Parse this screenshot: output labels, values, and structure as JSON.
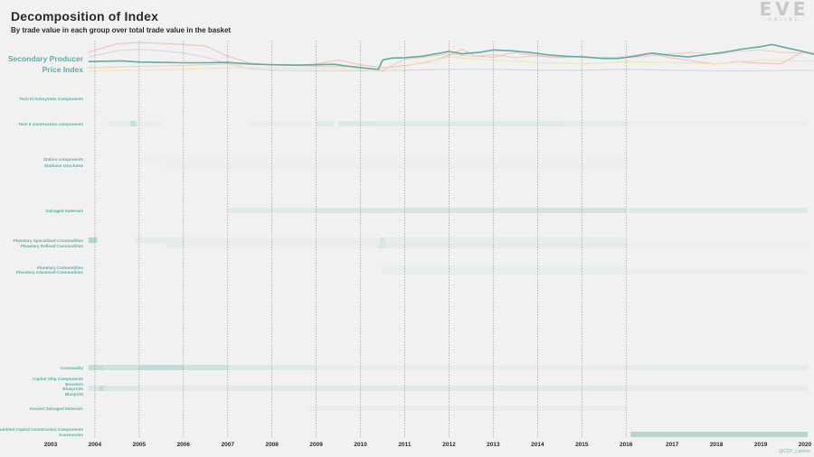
{
  "header": {
    "title": "Decomposition of Index",
    "subtitle": "By trade value in each group over total trade value in the basket",
    "logo_main": "EVE",
    "logo_sub": "ONLINE"
  },
  "credit": "@CCP_Larrikin",
  "chart_data": {
    "type": "heatmap",
    "title": "Decomposition of Index",
    "subtitle": "By trade value in each group over total trade value in the basket",
    "index_label_line1": "Secondary Producer",
    "index_label_line2": "Price Index",
    "x_ticks": [
      "2003",
      "2004",
      "2005",
      "2006",
      "2007",
      "2008",
      "2009",
      "2010",
      "2011",
      "2012",
      "2013",
      "2014",
      "2015",
      "2016",
      "2017",
      "2018",
      "2019",
      "2020"
    ],
    "xlim": [
      2003,
      2020.75
    ],
    "grid": "vertical dotted lines at each year",
    "colors": {
      "index_line": "#5fada4",
      "heat": "#7fbfb6",
      "bg_line_pink": "#f0b8b8",
      "bg_line_salmon": "#f3c6b4",
      "bg_line_lavender": "#cfd0e4",
      "bg_line_yellow": "#efe3ad",
      "label_color": "#5fada4"
    },
    "index_series": {
      "name": "Secondary Producer Price Index",
      "x": [
        2003.85,
        2004.2,
        2004.6,
        2005.0,
        2005.5,
        2006.0,
        2006.5,
        2007.0,
        2007.5,
        2008.0,
        2008.5,
        2009.0,
        2009.4,
        2009.8,
        2010.2,
        2010.4,
        2010.5,
        2010.7,
        2011.0,
        2011.4,
        2011.8,
        2012.0,
        2012.3,
        2012.7,
        2013.0,
        2013.4,
        2013.8,
        2014.2,
        2014.6,
        2015.0,
        2015.4,
        2015.8,
        2016.2,
        2016.6,
        2017.0,
        2017.4,
        2017.8,
        2018.2,
        2018.6,
        2019.0,
        2019.3,
        2019.6,
        2020.0,
        2020.4,
        2020.75
      ],
      "values": [
        0.46,
        0.47,
        0.48,
        0.45,
        0.44,
        0.43,
        0.43,
        0.44,
        0.4,
        0.38,
        0.37,
        0.38,
        0.39,
        0.33,
        0.28,
        0.26,
        0.5,
        0.55,
        0.56,
        0.6,
        0.68,
        0.72,
        0.66,
        0.7,
        0.76,
        0.74,
        0.7,
        0.64,
        0.6,
        0.58,
        0.55,
        0.54,
        0.6,
        0.68,
        0.62,
        0.58,
        0.64,
        0.7,
        0.78,
        0.84,
        0.9,
        0.82,
        0.72,
        0.6,
        0.55
      ]
    },
    "background_series": [
      {
        "color": "pink",
        "x": [
          2003.85,
          2004.5,
          2005.0,
          2005.5,
          2006.0,
          2006.5,
          2007.0,
          2007.5,
          2008.0,
          2008.5,
          2009.0,
          2009.5,
          2010.0,
          2010.5,
          2011.0,
          2011.5,
          2012.0,
          2012.3,
          2012.6,
          2013.0,
          2013.5,
          2014.0,
          2014.5,
          2015.0,
          2015.5,
          2016.0,
          2016.5,
          2017.0,
          2017.5,
          2018.0,
          2018.5,
          2019.0,
          2019.5,
          2020.0,
          2020.75
        ],
        "values": [
          0.7,
          0.92,
          0.95,
          0.93,
          0.9,
          0.86,
          0.6,
          0.42,
          0.38,
          0.36,
          0.4,
          0.5,
          0.38,
          0.3,
          0.36,
          0.44,
          0.62,
          0.78,
          0.6,
          0.58,
          0.7,
          0.6,
          0.56,
          0.6,
          0.54,
          0.58,
          0.68,
          0.56,
          0.48,
          0.4,
          0.46,
          0.42,
          0.4,
          0.72,
          0.6
        ]
      },
      {
        "color": "salmon",
        "x": [
          2003.85,
          2005.0,
          2006.0,
          2007.0,
          2008.0,
          2009.0,
          2010.0,
          2010.5,
          2011.0,
          2011.5,
          2012.0,
          2012.5,
          2013.0,
          2013.5,
          2014.0,
          2014.5,
          2015.0,
          2015.5,
          2016.0,
          2016.5,
          2017.0,
          2017.5,
          2018.0,
          2018.5,
          2019.0,
          2019.5,
          2020.0,
          2020.75
        ],
        "values": [
          0.3,
          0.34,
          0.36,
          0.4,
          0.38,
          0.34,
          0.32,
          0.24,
          0.52,
          0.58,
          0.66,
          0.6,
          0.64,
          0.56,
          0.62,
          0.58,
          0.6,
          0.52,
          0.56,
          0.6,
          0.66,
          0.7,
          0.64,
          0.72,
          0.76,
          0.7,
          0.68,
          0.66
        ]
      },
      {
        "color": "lavender",
        "x": [
          2003.85,
          2004.5,
          2005.0,
          2005.5,
          2006.0,
          2006.5,
          2007.0,
          2007.5,
          2008.0,
          2009.0,
          2010.0,
          2011.0,
          2012.0,
          2013.0,
          2014.0,
          2015.0,
          2016.0,
          2017.0,
          2018.0,
          2019.0,
          2020.0,
          2020.75
        ],
        "values": [
          0.58,
          0.74,
          0.78,
          0.74,
          0.68,
          0.58,
          0.4,
          0.28,
          0.24,
          0.22,
          0.22,
          0.24,
          0.26,
          0.26,
          0.24,
          0.24,
          0.26,
          0.24,
          0.22,
          0.22,
          0.24,
          0.2
        ]
      },
      {
        "color": "yellow",
        "x": [
          2003.85,
          2005.0,
          2006.0,
          2007.0,
          2008.0,
          2009.0,
          2010.0,
          2010.5,
          2011.0,
          2011.5,
          2012.0,
          2012.5,
          2013.0,
          2014.0,
          2015.0,
          2016.0,
          2017.0,
          2018.0,
          2019.0,
          2020.0,
          2020.75
        ],
        "values": [
          0.22,
          0.24,
          0.26,
          0.3,
          0.3,
          0.28,
          0.26,
          0.2,
          0.34,
          0.46,
          0.58,
          0.54,
          0.5,
          0.44,
          0.4,
          0.46,
          0.44,
          0.4,
          0.5,
          0.48,
          0.46
        ]
      }
    ],
    "rows": [
      {
        "label": "Tech III Subsystem Components",
        "emphasis": true,
        "segments": []
      },
      {
        "label": "Tech II construction components",
        "emphasis": true,
        "segments": [
          [
            2004.3,
            2004.9,
            0.1
          ],
          [
            2004.8,
            2004.95,
            0.3
          ],
          [
            2005.0,
            2005.5,
            0.06
          ],
          [
            2007.5,
            2008.9,
            0.06
          ],
          [
            2009.0,
            2009.4,
            0.14
          ],
          [
            2009.5,
            2010.4,
            0.16
          ],
          [
            2010.4,
            2014.5,
            0.12
          ],
          [
            2014.5,
            2016.0,
            0.1
          ],
          [
            2016.0,
            2020.75,
            0.05
          ]
        ]
      },
      {
        "label": "Station components",
        "emphasis": true,
        "segments": [
          [
            2005.0,
            2016.0,
            0.02
          ]
        ]
      },
      {
        "label": "Starbase structures",
        "emphasis": true,
        "segments": [
          [
            2005.5,
            2016.0,
            0.03
          ]
        ]
      },
      {
        "label": "Salvaged materials",
        "emphasis": true,
        "segments": [
          [
            2007.0,
            2009.0,
            0.14
          ],
          [
            2009.0,
            2011.0,
            0.2
          ],
          [
            2011.0,
            2014.0,
            0.24
          ],
          [
            2014.0,
            2016.0,
            0.26
          ],
          [
            2016.05,
            2020.75,
            0.16
          ]
        ]
      },
      {
        "label": "Planetary Specialized Commodities",
        "emphasis": true,
        "segments": [
          [
            2003.85,
            2004.05,
            0.55
          ],
          [
            2004.9,
            2006.0,
            0.1
          ],
          [
            2006.0,
            2010.5,
            0.07
          ],
          [
            2010.45,
            2010.55,
            0.2
          ],
          [
            2010.55,
            2016.0,
            0.08
          ]
        ]
      },
      {
        "label": "Planetary Refined Commodities",
        "emphasis": true,
        "segments": [
          [
            2005.6,
            2006.0,
            0.1
          ],
          [
            2006.0,
            2010.4,
            0.06
          ],
          [
            2010.4,
            2010.6,
            0.18
          ],
          [
            2010.6,
            2016.0,
            0.1
          ],
          [
            2016.0,
            2020.75,
            0.04
          ]
        ]
      },
      {
        "label": "Planetary Commodities",
        "emphasis": true,
        "segments": [
          [
            2010.5,
            2016.0,
            0.05
          ]
        ]
      },
      {
        "label": "Planetary Advanced Commodities",
        "emphasis": true,
        "segments": [
          [
            2010.5,
            2016.0,
            0.06
          ],
          [
            2016.0,
            2020.75,
            0.04
          ]
        ]
      },
      {
        "label": "Commodity",
        "emphasis": true,
        "segments": [
          [
            2003.85,
            2004.2,
            0.4
          ],
          [
            2004.2,
            2005.0,
            0.3
          ],
          [
            2005.0,
            2006.0,
            0.4
          ],
          [
            2006.0,
            2007.0,
            0.3
          ],
          [
            2007.0,
            2008.0,
            0.16
          ],
          [
            2008.0,
            2009.0,
            0.12
          ],
          [
            2009.0,
            2016.0,
            0.06
          ],
          [
            2016.0,
            2020.75,
            0.1
          ]
        ]
      },
      {
        "label": "Capital Ship Components",
        "emphasis": true,
        "segments": []
      },
      {
        "label": "Boosters",
        "emphasis": true,
        "segments": []
      },
      {
        "label": "Blueprints",
        "emphasis": true,
        "segments": [
          [
            2003.85,
            2004.1,
            0.2
          ],
          [
            2004.1,
            2004.2,
            0.4
          ],
          [
            2004.2,
            2005.0,
            0.22
          ],
          [
            2005.0,
            2007.0,
            0.1
          ],
          [
            2007.0,
            2011.0,
            0.12
          ],
          [
            2011.0,
            2016.0,
            0.14
          ],
          [
            2016.0,
            2020.75,
            0.1
          ]
        ]
      },
      {
        "label": "Blueprint",
        "emphasis": true,
        "segments": []
      },
      {
        "label": "Ancient Salvaged Materials",
        "emphasis": true,
        "segments": [
          [
            2008.8,
            2016.0,
            0.06
          ]
        ]
      },
      {
        "label": "Jumbled Capital Construction Components",
        "emphasis": true,
        "segments": []
      },
      {
        "label": "Accessories",
        "emphasis": true,
        "segments": [
          [
            2016.1,
            2020.75,
            0.55
          ]
        ]
      }
    ]
  }
}
